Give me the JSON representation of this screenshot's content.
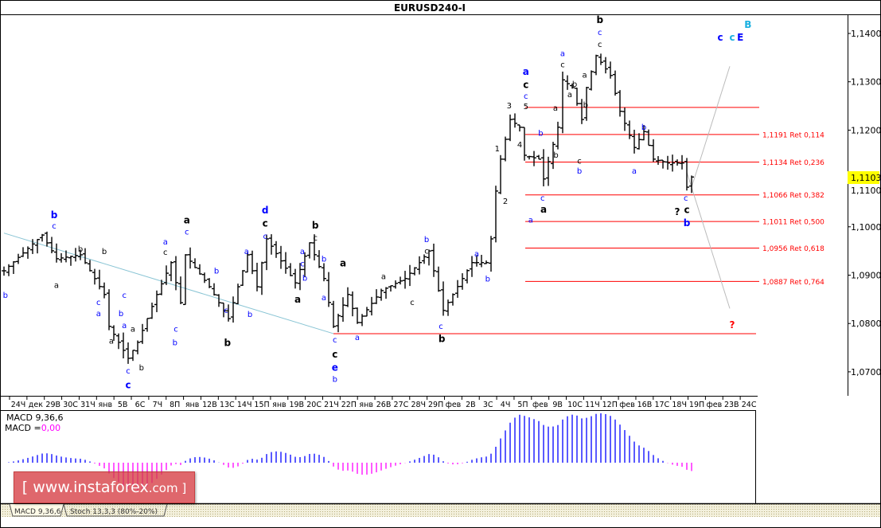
{
  "title": "EURUSD240-I",
  "current_price": "1,1103",
  "macd": {
    "label": "MACD 9,36,6",
    "value_prefix": "MACD =",
    "value": "0,00",
    "tabs": [
      "MACD 9,36,6",
      "Stoch 13,3,3 (80%-20%)"
    ]
  },
  "watermark": {
    "prefix": "[ www.instaforex",
    "suffix": ".com ]"
  },
  "colors": {
    "up_hist": "#0000ff",
    "down_hist": "#ff00ff",
    "fib": "#ff0000",
    "price_highlight": "#ffff00",
    "trend": "#88c4d4",
    "projection": "#bbbbbb"
  },
  "chart_data": {
    "type": "ohlc",
    "symbol": "EURUSD",
    "timeframe": "H4",
    "ylim": [
      1.065,
      1.1445
    ],
    "y_ticks": [
      "1,1400",
      "1,1300",
      "1,1200",
      "1,1100",
      "1,1000",
      "1,0900",
      "1,0800",
      "1,0700"
    ],
    "y_tick_values": [
      1.14,
      1.13,
      1.12,
      1.11,
      1.1,
      1.09,
      1.08,
      1.07
    ],
    "x_labels": [
      "24Ч",
      "дек",
      "29В",
      "30С",
      "31Ч",
      "янв",
      "5В",
      "6С",
      "7Ч",
      "8П",
      "янв",
      "12В",
      "13С",
      "14Ч",
      "15П",
      "янв",
      "19В",
      "20С",
      "21Ч",
      "22П",
      "янв",
      "26В",
      "27С",
      "28Ч",
      "29П",
      "фев",
      "2В",
      "3С",
      "4Ч",
      "5П",
      "фев",
      "9В",
      "10С",
      "11Ч",
      "12П",
      "фев",
      "16В",
      "17С",
      "18Ч",
      "19П",
      "фев",
      "23В",
      "24С"
    ],
    "bar_count": 145,
    "close_pivots": [
      [
        0,
        1.0909
      ],
      [
        8,
        1.0983
      ],
      [
        11,
        1.0934
      ],
      [
        16,
        1.0942
      ],
      [
        21,
        1.086
      ],
      [
        22,
        1.0794
      ],
      [
        26,
        1.0728
      ],
      [
        28,
        1.0761
      ],
      [
        32,
        1.086
      ],
      [
        35,
        1.0926
      ],
      [
        37,
        1.0843
      ],
      [
        38,
        1.0942
      ],
      [
        43,
        1.0876
      ],
      [
        47,
        1.081
      ],
      [
        51,
        1.0942
      ],
      [
        53,
        1.0876
      ],
      [
        55,
        1.0975
      ],
      [
        61,
        1.0884
      ],
      [
        64,
        1.0967
      ],
      [
        67,
        1.0893
      ],
      [
        69,
        1.0794
      ],
      [
        72,
        1.086
      ],
      [
        74,
        1.0802
      ],
      [
        79,
        1.0868
      ],
      [
        84,
        1.0893
      ],
      [
        87,
        1.0926
      ],
      [
        89,
        1.095
      ],
      [
        92,
        1.0827
      ],
      [
        94,
        1.086
      ],
      [
        98,
        1.0926
      ],
      [
        101,
        1.0926
      ],
      [
        102,
        1.0975
      ],
      [
        103,
        1.1074
      ],
      [
        104,
        1.114
      ],
      [
        106,
        1.1222
      ],
      [
        108,
        1.1206
      ],
      [
        109,
        1.1148
      ],
      [
        112,
        1.114
      ],
      [
        113,
        1.1099
      ],
      [
        116,
        1.1206
      ],
      [
        117,
        1.1304
      ],
      [
        119,
        1.1288
      ],
      [
        121,
        1.1222
      ],
      [
        122,
        1.1288
      ],
      [
        124,
        1.1354
      ],
      [
        127,
        1.1313
      ],
      [
        129,
        1.1239
      ],
      [
        132,
        1.1164
      ],
      [
        134,
        1.1197
      ],
      [
        136,
        1.114
      ],
      [
        139,
        1.1132
      ],
      [
        142,
        1.1132
      ],
      [
        143,
        1.1082
      ],
      [
        144,
        1.1103
      ]
    ],
    "fib_levels": [
      {
        "price": 1.1247,
        "label": ""
      },
      {
        "price": 1.1191,
        "label": "1,1191 Ret 0,114"
      },
      {
        "price": 1.1134,
        "label": "1,1134 Ret 0,236"
      },
      {
        "price": 1.1066,
        "label": "1,1066 Ret 0,382"
      },
      {
        "price": 1.1011,
        "label": "1,1011 Ret 0,500"
      },
      {
        "price": 1.0956,
        "label": "1,0956 Ret 0,618"
      },
      {
        "price": 1.0887,
        "label": "1,0887 Ret 0,764"
      }
    ],
    "support_level": 1.0779,
    "trendline": [
      [
        0,
        1.0987
      ],
      [
        69,
        1.0779
      ]
    ],
    "projections": [
      [
        [
          144,
          1.1082
        ],
        [
          152,
          1.1332
        ]
      ],
      [
        [
          143,
          1.1113
        ],
        [
          152,
          1.0831
        ]
      ]
    ],
    "wave_labels": [
      {
        "t": "b",
        "c": "blue",
        "i": 0.3,
        "p": 1.086
      },
      {
        "t": "b",
        "c": "blue",
        "b": 1,
        "i": 10.5,
        "p": 1.1024
      },
      {
        "t": "c",
        "c": "blue",
        "i": 10.5,
        "p": 1.1003
      },
      {
        "t": "b",
        "c": "black",
        "i": 16,
        "p": 1.0955
      },
      {
        "t": "a",
        "c": "black",
        "i": 11,
        "p": 1.088
      },
      {
        "t": "c",
        "c": "blue",
        "i": 19.8,
        "p": 1.0845
      },
      {
        "t": "a",
        "c": "blue",
        "i": 19.8,
        "p": 1.0828
      },
      {
        "t": "b",
        "c": "black",
        "i": 21,
        "p": 1.095
      },
      {
        "t": "b",
        "c": "blue",
        "i": 24.5,
        "p": 1.0822
      },
      {
        "t": "c",
        "c": "blue",
        "i": 25.2,
        "p": 1.086
      },
      {
        "t": "a",
        "c": "blue",
        "i": 25.2,
        "p": 1.081
      },
      {
        "t": "a",
        "c": "black",
        "i": 22.5,
        "p": 1.0765
      },
      {
        "t": "a",
        "c": "black",
        "i": 27,
        "p": 1.079
      },
      {
        "t": "c",
        "c": "blue",
        "b": 1,
        "i": 26,
        "p": 1.0673
      },
      {
        "t": "c",
        "c": "blue",
        "i": 26,
        "p": 1.069
      },
      {
        "t": "b",
        "c": "black",
        "i": 28.8,
        "p": 1.071
      },
      {
        "t": "a",
        "c": "blue",
        "i": 33.8,
        "p": 1.097
      },
      {
        "t": "c",
        "c": "black",
        "i": 33.8,
        "p": 1.0955
      },
      {
        "t": "b",
        "c": "blue",
        "i": 35.8,
        "p": 1.0762
      },
      {
        "t": "c",
        "c": "blue",
        "i": 36,
        "p": 1.079
      },
      {
        "t": "a",
        "c": "black",
        "b": 1,
        "i": 38.3,
        "p": 1.1014
      },
      {
        "t": "c",
        "c": "blue",
        "i": 38.3,
        "p": 1.0997
      },
      {
        "t": "b",
        "c": "blue",
        "i": 44.5,
        "p": 1.091
      },
      {
        "t": "c",
        "c": "blue",
        "i": 46.5,
        "p": 1.0828
      },
      {
        "t": "b",
        "c": "black",
        "b": 1,
        "i": 46.8,
        "p": 1.076
      },
      {
        "t": "a",
        "c": "blue",
        "i": 50.8,
        "p": 1.095
      },
      {
        "t": "b",
        "c": "blue",
        "i": 51.5,
        "p": 1.082
      },
      {
        "t": "d",
        "c": "blue",
        "b": 1,
        "i": 54.7,
        "p": 1.1034
      },
      {
        "t": "c",
        "c": "black",
        "b": 1,
        "i": 54.7,
        "p": 1.1014
      },
      {
        "t": "c",
        "c": "blue",
        "i": 54.7,
        "p": 1.0995
      },
      {
        "t": "a",
        "c": "black",
        "b": 1,
        "i": 61.5,
        "p": 1.085
      },
      {
        "t": "b",
        "c": "black",
        "b": 1,
        "i": 65.2,
        "p": 1.1003
      },
      {
        "t": "c",
        "c": "black",
        "i": 65.2,
        "p": 1.0985
      },
      {
        "t": "a",
        "c": "blue",
        "i": 62.5,
        "p": 1.095
      },
      {
        "t": "b",
        "c": "blue",
        "i": 63,
        "p": 1.0895
      },
      {
        "t": "c",
        "c": "blue",
        "i": 62.5,
        "p": 1.0938
      },
      {
        "t": "b",
        "c": "blue",
        "i": 67,
        "p": 1.0935
      },
      {
        "t": "a",
        "c": "blue",
        "i": 67,
        "p": 1.0855
      },
      {
        "t": "c",
        "c": "blue",
        "i": 69.3,
        "p": 1.0767
      },
      {
        "t": "c",
        "c": "black",
        "b": 1,
        "i": 69.3,
        "p": 1.0749
      },
      {
        "t": "e",
        "c": "blue",
        "b": 1,
        "i": 69.3,
        "p": 1.0729
      },
      {
        "t": "b",
        "c": "blue",
        "i": 69.3,
        "p": 1.0706
      },
      {
        "t": "a",
        "c": "black",
        "b": 1,
        "i": 71,
        "p": 1.0925
      },
      {
        "t": "a",
        "c": "blue",
        "i": 74,
        "p": 1.0772
      },
      {
        "t": "a",
        "c": "black",
        "i": 79.5,
        "p": 1.0898
      },
      {
        "t": "c",
        "c": "black",
        "i": 85.5,
        "p": 1.0845
      },
      {
        "t": "b",
        "c": "blue",
        "i": 88.5,
        "p": 1.0975
      },
      {
        "t": "c",
        "c": "black",
        "i": 88.5,
        "p": 1.0958
      },
      {
        "t": "c",
        "c": "blue",
        "i": 91.5,
        "p": 1.0795
      },
      {
        "t": "b",
        "c": "black",
        "b": 1,
        "i": 91.7,
        "p": 1.0775
      },
      {
        "t": "a",
        "c": "blue",
        "i": 99,
        "p": 1.0945
      },
      {
        "t": "b",
        "c": "blue",
        "i": 101.3,
        "p": 1.0893
      },
      {
        "t": "1",
        "c": "black",
        "i": 103.3,
        "p": 1.1163
      },
      {
        "t": "2",
        "c": "black",
        "i": 105,
        "p": 1.1054
      },
      {
        "t": "3",
        "c": "black",
        "i": 105.8,
        "p": 1.1252
      },
      {
        "t": "4",
        "c": "black",
        "i": 108,
        "p": 1.1171
      },
      {
        "t": "a",
        "c": "blue",
        "b": 1,
        "i": 109.3,
        "p": 1.1321
      },
      {
        "t": "c",
        "c": "black",
        "b": 1,
        "i": 109.3,
        "p": 1.13
      },
      {
        "t": "c",
        "c": "blue",
        "i": 109.3,
        "p": 1.1278
      },
      {
        "t": "5",
        "c": "black",
        "i": 109.3,
        "p": 1.1257
      },
      {
        "t": "a",
        "c": "blue",
        "i": 110.3,
        "p": 1.1015
      },
      {
        "t": "b",
        "c": "blue",
        "i": 112.4,
        "p": 1.1195
      },
      {
        "t": "c",
        "c": "blue",
        "i": 112.8,
        "p": 1.1061
      },
      {
        "t": "a",
        "c": "black",
        "b": 1,
        "i": 113,
        "p": 1.1049
      },
      {
        "t": "a",
        "c": "black",
        "i": 115.5,
        "p": 1.1247
      },
      {
        "t": "b",
        "c": "black",
        "i": 115.6,
        "p": 1.115
      },
      {
        "t": "a",
        "c": "blue",
        "i": 117,
        "p": 1.136
      },
      {
        "t": "c",
        "c": "black",
        "i": 117,
        "p": 1.1343
      },
      {
        "t": "a",
        "c": "black",
        "i": 118.5,
        "p": 1.1275
      },
      {
        "t": "b",
        "c": "black",
        "i": 119.5,
        "p": 1.129
      },
      {
        "t": "a",
        "c": "black",
        "i": 121.6,
        "p": 1.1315
      },
      {
        "t": "b",
        "c": "black",
        "i": 121.8,
        "p": 1.1253
      },
      {
        "t": "c",
        "c": "black",
        "i": 120.5,
        "p": 1.1137
      },
      {
        "t": "b",
        "c": "blue",
        "i": 120.5,
        "p": 1.1117
      },
      {
        "t": "b",
        "c": "black",
        "b": 1,
        "i": 124.8,
        "p": 1.1428
      },
      {
        "t": "c",
        "c": "blue",
        "i": 124.8,
        "p": 1.141
      },
      {
        "t": "c",
        "c": "black",
        "i": 124.8,
        "p": 1.1392
      },
      {
        "t": "b",
        "c": "blue",
        "i": 134,
        "p": 1.1207
      },
      {
        "t": "a",
        "c": "blue",
        "i": 132,
        "p": 1.1117
      },
      {
        "t": "c",
        "c": "blue",
        "i": 142.8,
        "p": 1.1061
      },
      {
        "t": "?",
        "c": "black",
        "b": 1,
        "i": 141,
        "p": 1.1031
      },
      {
        "t": "c",
        "c": "black",
        "b": 1,
        "i": 143,
        "p": 1.1042
      },
      {
        "t": "b",
        "c": "blue",
        "b": 1,
        "i": 143,
        "p": 1.1021
      },
      {
        "t": "?",
        "c": "red",
        "b": 1,
        "i": 152.5,
        "p": 1.0797
      },
      {
        "t": "c",
        "c": "blue",
        "b": 1,
        "i": 150,
        "p": 1.1392
      },
      {
        "t": "c",
        "c": "#1ab0e0",
        "b": 1,
        "i": 152.5,
        "p": 1.1392
      },
      {
        "t": "E",
        "c": "blue",
        "b": 1,
        "i": 154.2,
        "p": 1.1392
      },
      {
        "t": "B",
        "c": "#1ab0e0",
        "b": 1,
        "i": 155.8,
        "p": 1.1392
      }
    ]
  }
}
